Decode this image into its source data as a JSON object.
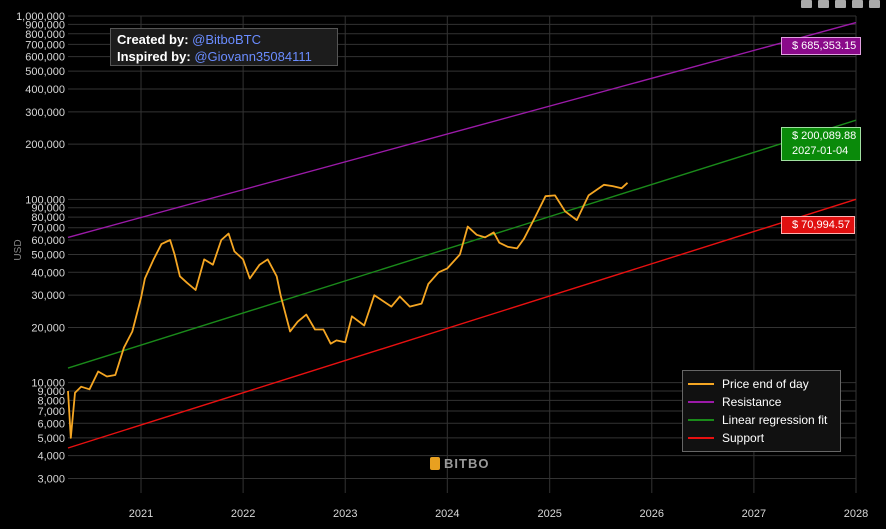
{
  "credits": {
    "created_label": "Created by:",
    "created_handle": "@BitboBTC",
    "inspired_label": "Inspired by:",
    "inspired_handle": "@Giovann35084111"
  },
  "watermark": {
    "text": "BITBO",
    "icon": "bitbo-logo-icon"
  },
  "toolbar": {
    "icons": [
      "zoom-icon",
      "pan-icon",
      "zoom-in-icon",
      "zoom-out-icon",
      "autoscale-icon"
    ]
  },
  "tags": {
    "resistance": "$ 685,353.15",
    "regression_value": "$ 200,089.88",
    "regression_date": "2027-01-04",
    "support": "$ 70,994.57"
  },
  "colors": {
    "price": "#f5a623",
    "resistance": "#9b1aa8",
    "regression": "#1a8a1a",
    "support": "#e81010",
    "grid": "#333333"
  },
  "chart_data": {
    "type": "line",
    "title": "",
    "xlabel": "",
    "ylabel": "USD",
    "y_scale": "log",
    "xlim": [
      "2020-04-15",
      "2028-01-01"
    ],
    "ylim": [
      2500,
      1000000
    ],
    "grid": true,
    "legend_placement": "bottom-right",
    "x_tick_labels": [
      "2021",
      "2022",
      "2023",
      "2024",
      "2025",
      "2026",
      "2027",
      "2028"
    ],
    "x_tick_values": [
      "2021-01-01",
      "2022-01-01",
      "2023-01-01",
      "2024-01-01",
      "2025-01-01",
      "2026-01-01",
      "2027-01-01",
      "2028-01-01"
    ],
    "y_tick_values": [
      3000,
      4000,
      5000,
      6000,
      7000,
      8000,
      9000,
      10000,
      20000,
      30000,
      40000,
      50000,
      60000,
      70000,
      80000,
      90000,
      100000,
      200000,
      300000,
      400000,
      500000,
      600000,
      700000,
      800000,
      900000,
      1000000
    ],
    "y_tick_labels": [
      "3,000",
      "4,000",
      "5,000",
      "6,000",
      "7,000",
      "8,000",
      "9,000",
      "10,000",
      "20,000",
      "30,000",
      "40,000",
      "50,000",
      "60,000",
      "70,000",
      "80,000",
      "90,000",
      "100,000",
      "200,000",
      "300,000",
      "400,000",
      "500,000",
      "600,000",
      "700,000",
      "800,000",
      "900,000",
      "1,000,000"
    ],
    "series": [
      {
        "name": "Price end of day",
        "x": [
          "2020-04-15",
          "2020-04-25",
          "2020-05-10",
          "2020-06-01",
          "2020-07-01",
          "2020-08-01",
          "2020-09-01",
          "2020-10-01",
          "2020-11-01",
          "2020-12-01",
          "2021-01-01",
          "2021-01-15",
          "2021-02-15",
          "2021-03-15",
          "2021-04-15",
          "2021-05-01",
          "2021-05-20",
          "2021-06-15",
          "2021-07-15",
          "2021-08-15",
          "2021-09-15",
          "2021-10-15",
          "2021-11-10",
          "2021-12-01",
          "2022-01-01",
          "2022-01-25",
          "2022-03-01",
          "2022-03-30",
          "2022-05-01",
          "2022-05-15",
          "2022-06-18",
          "2022-07-15",
          "2022-08-15",
          "2022-09-15",
          "2022-10-15",
          "2022-11-10",
          "2022-12-01",
          "2023-01-01",
          "2023-01-25",
          "2023-03-10",
          "2023-04-15",
          "2023-06-15",
          "2023-07-15",
          "2023-08-20",
          "2023-10-01",
          "2023-10-25",
          "2023-12-01",
          "2024-01-01",
          "2024-02-15",
          "2024-03-14",
          "2024-04-15",
          "2024-05-15",
          "2024-06-15",
          "2024-07-05",
          "2024-08-05",
          "2024-09-06",
          "2024-10-01",
          "2024-11-10",
          "2024-12-17",
          "2025-01-20",
          "2025-02-25",
          "2025-04-08",
          "2025-05-20",
          "2025-07-14",
          "2025-08-14",
          "2025-09-15",
          "2025-10-06"
        ],
        "y": [
          9000,
          5000,
          8800,
          9500,
          9200,
          11500,
          10800,
          11000,
          15500,
          19000,
          29000,
          37000,
          47000,
          57000,
          60000,
          50000,
          38000,
          35000,
          32000,
          47000,
          44000,
          60000,
          65000,
          52000,
          47000,
          37000,
          44000,
          47000,
          38000,
          30000,
          19000,
          21500,
          23500,
          19500,
          19500,
          16300,
          17000,
          16600,
          23000,
          20500,
          30000,
          26000,
          29500,
          26000,
          27000,
          34500,
          40000,
          42000,
          50000,
          71000,
          64000,
          62000,
          66000,
          58000,
          55000,
          54000,
          61000,
          80000,
          104000,
          105000,
          86000,
          77000,
          105000,
          120000,
          118000,
          115000,
          123000
        ]
      },
      {
        "name": "Resistance",
        "x": [
          "2020-04-15",
          "2028-01-01"
        ],
        "y": [
          62000,
          920000
        ]
      },
      {
        "name": "Linear regression fit",
        "x": [
          "2020-04-15",
          "2028-01-01"
        ],
        "y": [
          12000,
          270000
        ]
      },
      {
        "name": "Support",
        "x": [
          "2020-04-15",
          "2028-01-01"
        ],
        "y": [
          4400,
          100000
        ]
      }
    ]
  }
}
